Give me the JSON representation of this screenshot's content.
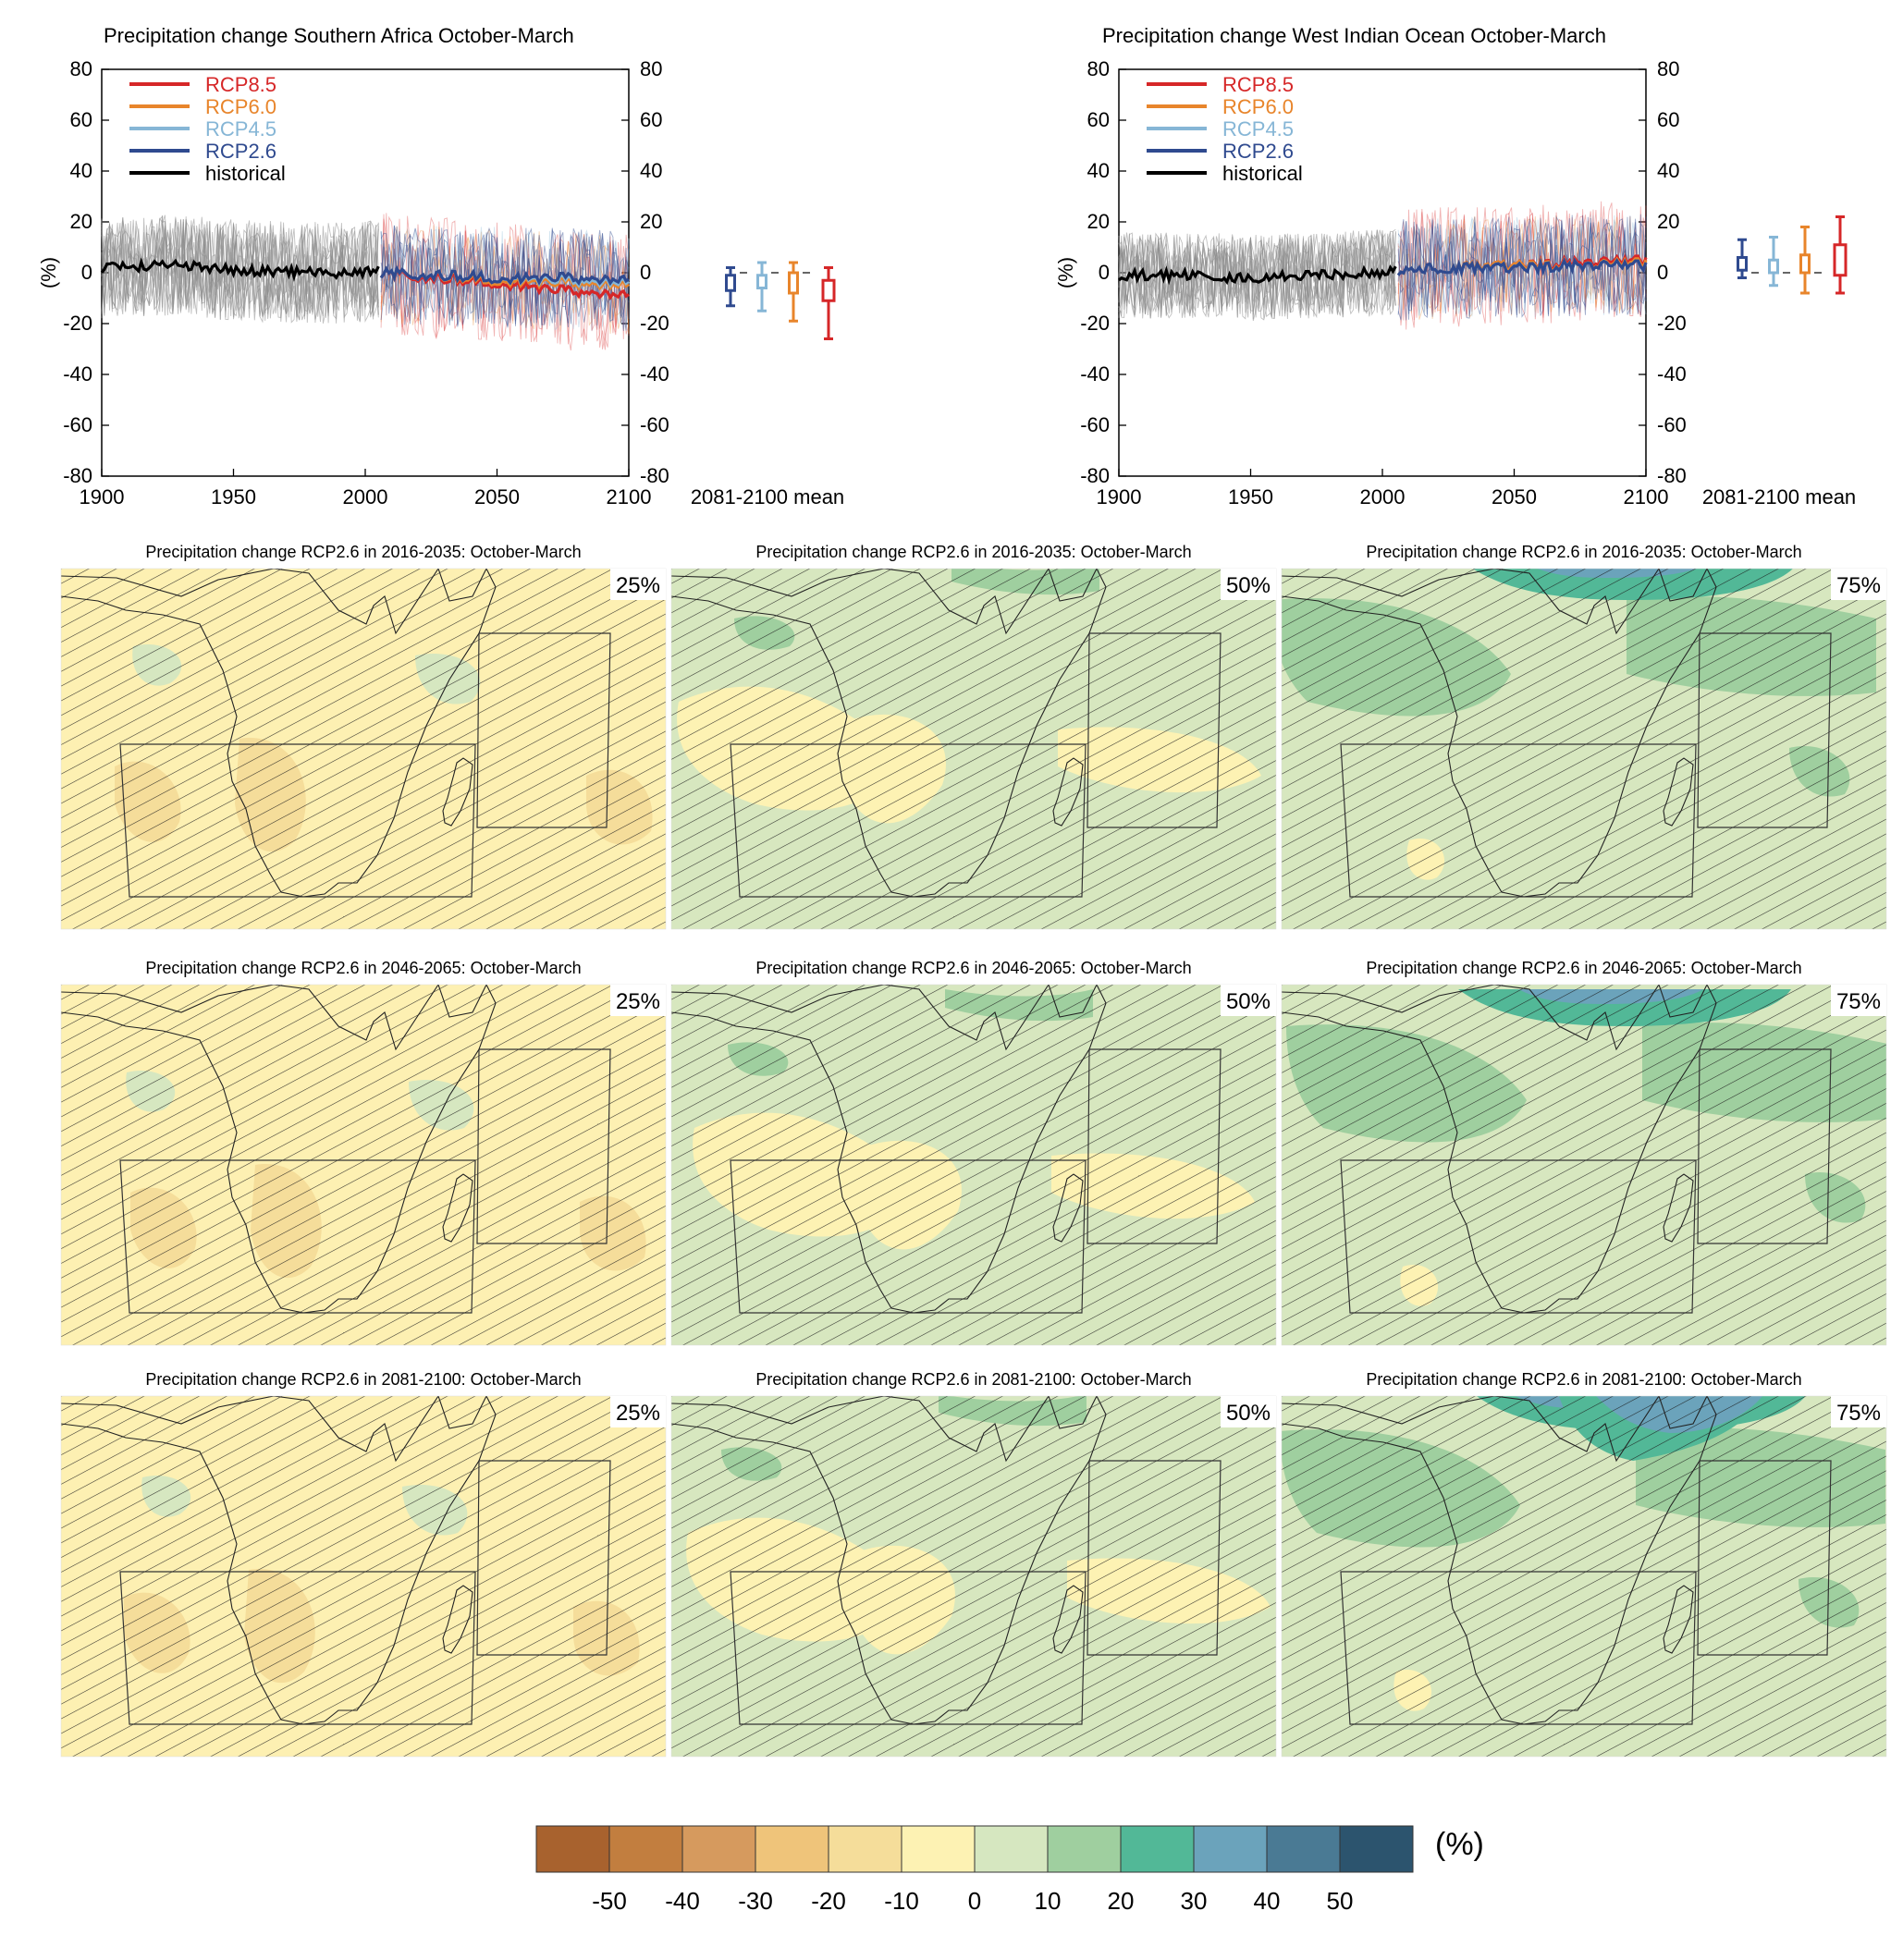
{
  "time_series_panels": [
    {
      "id": "southern-africa",
      "title": "Precipitation change Southern Africa October-March",
      "ylabel": "(%)",
      "yticks": [
        "80",
        "60",
        "40",
        "20",
        "0",
        "-20",
        "-40",
        "-60",
        "-80"
      ],
      "xticks": [
        "1900",
        "1950",
        "2000",
        "2050",
        "2100"
      ],
      "boxplot_label": "2081-2100 mean"
    },
    {
      "id": "west-indian-ocean",
      "title": "Precipitation change West Indian Ocean October-March",
      "ylabel": "(%)",
      "yticks": [
        "80",
        "60",
        "40",
        "20",
        "0",
        "-20",
        "-40",
        "-60",
        "-80"
      ],
      "xticks": [
        "1900",
        "1950",
        "2000",
        "2050",
        "2100"
      ],
      "boxplot_label": "2081-2100 mean"
    }
  ],
  "legend": [
    {
      "name": "RCP8.5",
      "color": "#d62728"
    },
    {
      "name": "RCP6.0",
      "color": "#e8852b"
    },
    {
      "name": "RCP4.5",
      "color": "#86b6d6"
    },
    {
      "name": "RCP2.6",
      "color": "#2f4a8f"
    },
    {
      "name": "historical",
      "color": "#000000"
    }
  ],
  "chart_data": [
    {
      "type": "line",
      "title": "Precipitation change Southern Africa October-March",
      "ylabel": "(%)",
      "xlim": [
        1900,
        2100
      ],
      "ylim": [
        -80,
        80
      ],
      "grid": false,
      "legend_position": "top-left",
      "series": [
        {
          "name": "historical",
          "x": [
            1900,
            1925,
            1950,
            1975,
            2000,
            2005
          ],
          "values": [
            2,
            3,
            1,
            0,
            0,
            1
          ]
        },
        {
          "name": "RCP2.6",
          "x": [
            2006,
            2025,
            2050,
            2075,
            2100
          ],
          "values": [
            0,
            -1,
            -2,
            -2,
            -3
          ]
        },
        {
          "name": "RCP4.5",
          "x": [
            2006,
            2025,
            2050,
            2075,
            2100
          ],
          "values": [
            0,
            -1,
            -2,
            -3,
            -4
          ]
        },
        {
          "name": "RCP6.0",
          "x": [
            2006,
            2025,
            2050,
            2075,
            2100
          ],
          "values": [
            0,
            -1,
            -3,
            -4,
            -5
          ]
        },
        {
          "name": "RCP8.5",
          "x": [
            2006,
            2025,
            2050,
            2075,
            2100
          ],
          "values": [
            0,
            -2,
            -4,
            -7,
            -9
          ]
        }
      ],
      "boxplots_2081_2100": [
        {
          "name": "RCP2.6",
          "whisker_low": -13,
          "q1": -7,
          "median": -3,
          "q3": -1,
          "whisker_high": 2
        },
        {
          "name": "RCP4.5",
          "whisker_low": -15,
          "q1": -6,
          "median": -3,
          "q3": -1,
          "whisker_high": 4
        },
        {
          "name": "RCP6.0",
          "whisker_low": -19,
          "q1": -8,
          "median": -5,
          "q3": 0,
          "whisker_high": 4
        },
        {
          "name": "RCP8.5",
          "whisker_low": -26,
          "q1": -11,
          "median": -7,
          "q3": -3,
          "whisker_high": 2
        }
      ]
    },
    {
      "type": "line",
      "title": "Precipitation change West Indian Ocean October-March",
      "ylabel": "(%)",
      "xlim": [
        1900,
        2100
      ],
      "ylim": [
        -80,
        80
      ],
      "grid": false,
      "legend_position": "top-left",
      "series": [
        {
          "name": "historical",
          "x": [
            1900,
            1925,
            1950,
            1975,
            2000,
            2005
          ],
          "values": [
            -1,
            -1,
            -2,
            -1,
            0,
            1
          ]
        },
        {
          "name": "RCP2.6",
          "x": [
            2006,
            2025,
            2050,
            2075,
            2100
          ],
          "values": [
            1,
            2,
            2,
            3,
            3
          ]
        },
        {
          "name": "RCP4.5",
          "x": [
            2006,
            2025,
            2050,
            2075,
            2100
          ],
          "values": [
            1,
            2,
            2,
            3,
            3
          ]
        },
        {
          "name": "RCP6.0",
          "x": [
            2006,
            2025,
            2050,
            2075,
            2100
          ],
          "values": [
            1,
            2,
            3,
            3,
            4
          ]
        },
        {
          "name": "RCP8.5",
          "x": [
            2006,
            2025,
            2050,
            2075,
            2100
          ],
          "values": [
            1,
            2,
            3,
            4,
            5
          ]
        }
      ],
      "boxplots_2081_2100": [
        {
          "name": "RCP2.6",
          "whisker_low": -2,
          "q1": 1,
          "median": 3,
          "q3": 6,
          "whisker_high": 13
        },
        {
          "name": "RCP4.5",
          "whisker_low": -5,
          "q1": 0,
          "median": 2,
          "q3": 5,
          "whisker_high": 14
        },
        {
          "name": "RCP6.0",
          "whisker_low": -8,
          "q1": 0,
          "median": 3,
          "q3": 7,
          "whisker_high": 18
        },
        {
          "name": "RCP8.5",
          "whisker_low": -8,
          "q1": -1,
          "median": 4,
          "q3": 11,
          "whisker_high": 22
        }
      ]
    }
  ],
  "maps": {
    "rows": [
      {
        "title": "Precipitation change RCP2.6 in 2016-2035: October-March"
      },
      {
        "title": "Precipitation change RCP2.6 in 2046-2065: October-March"
      },
      {
        "title": "Precipitation change RCP2.6 in 2081-2100: October-March"
      }
    ],
    "columns": [
      {
        "percentile": "25%",
        "base_color": "#fdf0b2"
      },
      {
        "percentile": "50%",
        "base_color": "#d7e7bf"
      },
      {
        "percentile": "75%",
        "base_color": "#d7e7bf"
      }
    ],
    "hatching": true
  },
  "colorbar": {
    "unit": "(%)",
    "colors": [
      "#a8622e",
      "#c27e3f",
      "#d69a5e",
      "#efc47a",
      "#f5dd9a",
      "#fdf2b3",
      "#d6e7c0",
      "#9fcf9f",
      "#52b897",
      "#6ba3bb",
      "#4a7a94",
      "#2c546e"
    ],
    "ticks": [
      "-50",
      "-40",
      "-30",
      "-20",
      "-10",
      "0",
      "10",
      "20",
      "30",
      "40",
      "50"
    ]
  }
}
